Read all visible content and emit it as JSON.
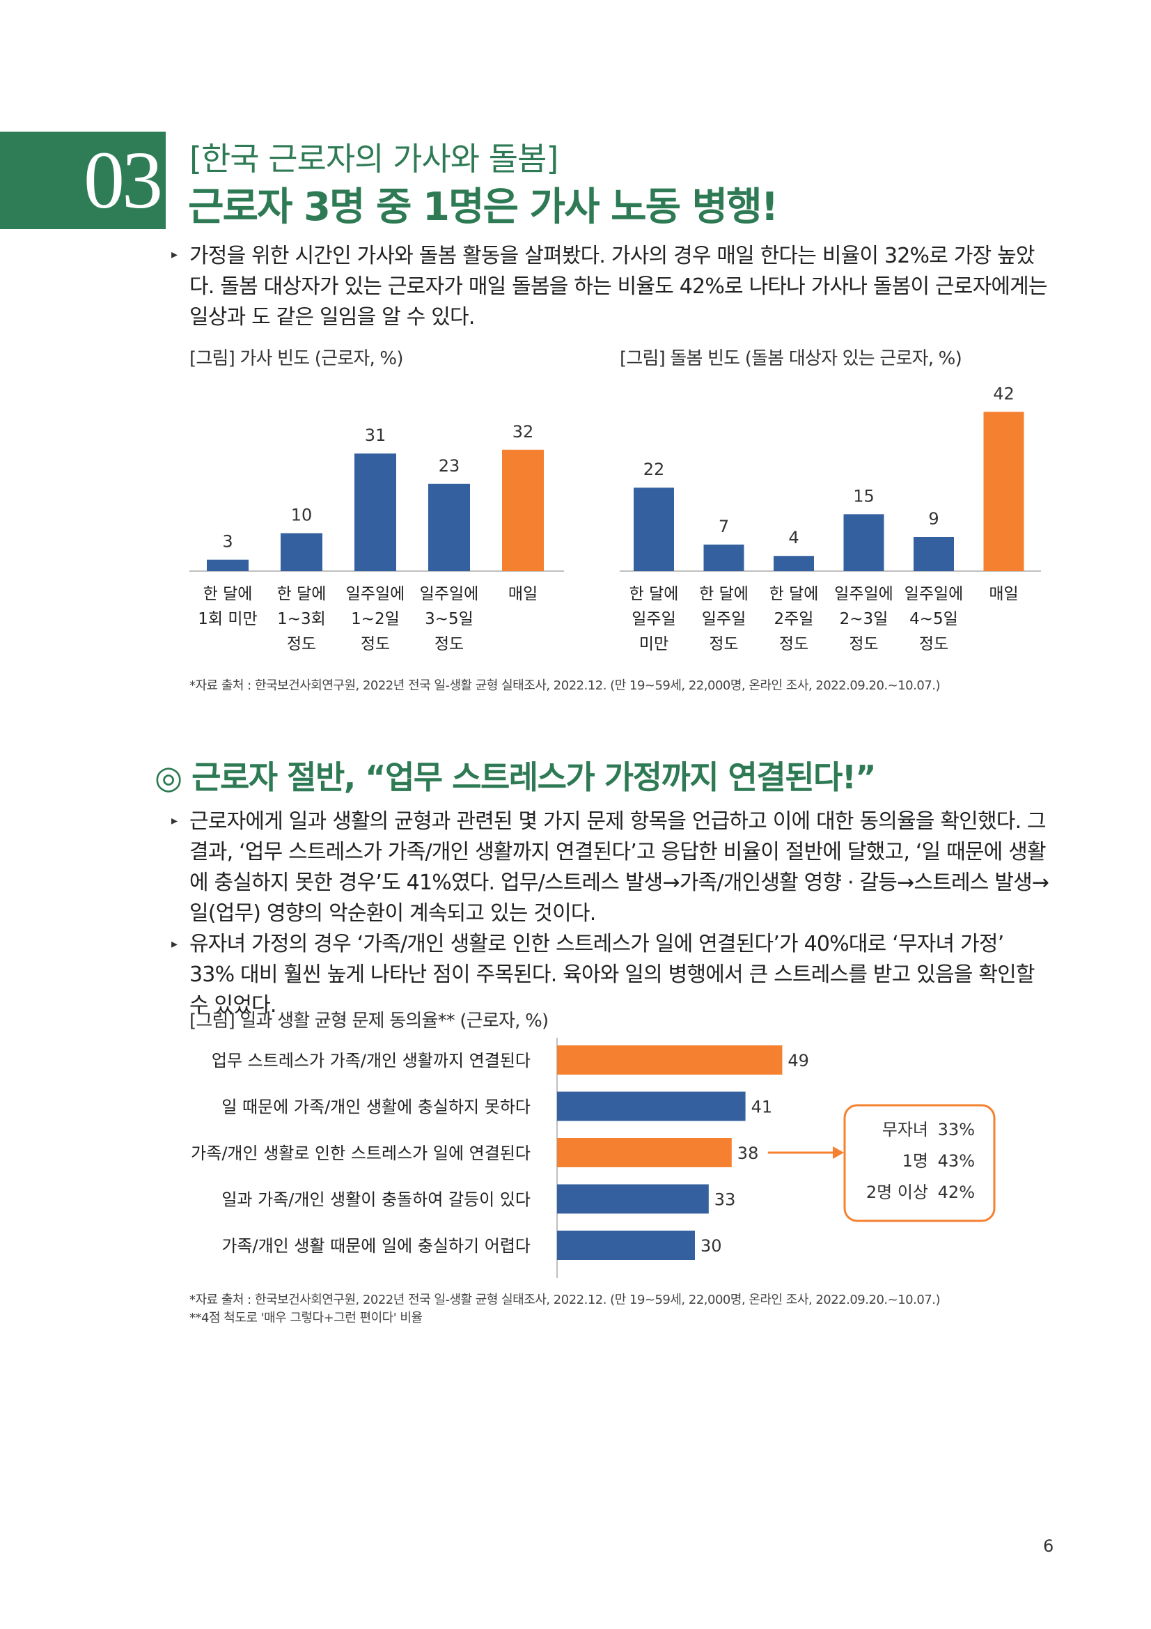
{
  "header": {
    "section_number": "03",
    "kicker": "[한국 근로자의 가사와 돌봄]",
    "headline": "근로자 3명 중 1명은 가사 노동 병행!"
  },
  "section1": {
    "paragraph": "가정을 위한 시간인 가사와 돌봄 활동을 살펴봤다. 가사의 경우 매일 한다는 비율이 32%로 가장 높았다. 돌봄 대상자가 있는 근로자가 매일 돌봄을 하는 비율도 42%로 나타나 가사나 돌봄이 근로자에게는 일상과 도 같은 일임을 알 수 있다.",
    "source": "*자료 출처 : 한국보건사회연구원, 2022년 전국 일-생활 균형 실태조사, 2022.12. (만 19~59세, 22,000명, 온라인 조사, 2022.09.20.~10.07.)"
  },
  "section2": {
    "title": "◎ 근로자 절반, “업무 스트레스가 가정까지 연결된다!”",
    "paragraph1": "근로자에게 일과 생활의 균형과 관련된 몇 가지 문제 항목을 언급하고 이에 대한 동의율을 확인했다. 그 결과, ‘업무 스트레스가 가족/개인 생활까지 연결된다’고 응답한 비율이 절반에 달했고, ‘일 때문에 생활에 충실하지 못한 경우’도 41%였다. 업무/스트레스 발생→가족/개인생활 영향 · 갈등→스트레스 발생→일(업무) 영향의 악순환이 계속되고 있는 것이다.",
    "paragraph2": "유자녀 가정의 경우 ‘가족/개인 생활로 인한 스트레스가 일에 연결된다’가 40%대로 ‘무자녀 가정’ 33% 대비 훨씬 높게 나타난 점이 주목된다. 육아와 일의 병행에서 큰 스트레스를 받고 있음을 확인할 수 있었다.",
    "source1": "*자료 출처 : 한국보건사회연구원, 2022년 전국 일-생활 균형 실태조사, 2022.12. (만 19~59세, 22,000명, 온라인 조사, 2022.09.20.~10.07.)",
    "source2": "**4점 척도로 '매우 그렇다+그런 편이다' 비율"
  },
  "page_number": "6",
  "colors": {
    "green": "#2e7a54",
    "blue": "#35609f",
    "orange": "#f5802f"
  },
  "chart_data": [
    {
      "type": "bar",
      "title": "[그림] 가사 빈도 (근로자, %)",
      "categories": [
        "한 달에\n1회 미만",
        "한 달에\n1~3회\n정도",
        "일주일에\n1~2일\n정도",
        "일주일에\n3~5일\n정도",
        "매일"
      ],
      "values": [
        3,
        10,
        31,
        23,
        32
      ],
      "highlight_index": 4,
      "ylim": [
        0,
        45
      ]
    },
    {
      "type": "bar",
      "title": "[그림] 돌봄 빈도 (돌봄 대상자 있는 근로자, %)",
      "categories": [
        "한 달에\n일주일\n미만",
        "한 달에\n일주일\n정도",
        "한 달에\n2주일\n정도",
        "일주일에\n2~3일\n정도",
        "일주일에\n4~5일\n정도",
        "매일"
      ],
      "values": [
        22,
        7,
        4,
        15,
        9,
        42
      ],
      "highlight_index": 5,
      "ylim": [
        0,
        45
      ]
    },
    {
      "type": "bar",
      "orientation": "horizontal",
      "title": "[그림] 일과 생활 균형 문제 동의율** (근로자, %)",
      "categories": [
        "업무 스트레스가 가족/개인 생활까지 연결된다",
        "일 때문에 가족/개인 생활에 충실하지 못하다",
        "가족/개인 생활로 인한 스트레스가 일에 연결된다",
        "일과 가족/개인 생활이 충돌하여 갈등이 있다",
        "가족/개인 생활 때문에 일에 충실하기 어렵다"
      ],
      "values": [
        49,
        41,
        38,
        33,
        30
      ],
      "highlight_indices": [
        0,
        2
      ],
      "xlim": [
        0,
        55
      ],
      "callout": {
        "rows": [
          {
            "label": "무자녀",
            "value": "33%"
          },
          {
            "label": "1명",
            "value": "43%"
          },
          {
            "label": "2명 이상",
            "value": "42%"
          }
        ]
      }
    }
  ]
}
